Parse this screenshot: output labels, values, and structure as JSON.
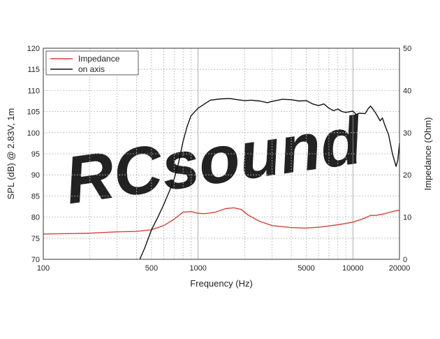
{
  "chart_data": {
    "type": "line",
    "x_scale": "log",
    "xlabel": "Frequency (Hz)",
    "ylabel_left": "SPL (dB) @ 2.83V, 1m",
    "ylabel_right": "Impedance (Ohm)",
    "xlim": [
      100,
      20000
    ],
    "ylim_left": [
      70,
      120
    ],
    "ylim_right": [
      0,
      50
    ],
    "x_ticks": [
      100,
      500,
      1000,
      5000,
      10000,
      20000
    ],
    "x_tick_labels": [
      "100",
      "500",
      "1000",
      "5000",
      "10000",
      "20000"
    ],
    "y_left_ticks": [
      70,
      75,
      80,
      85,
      90,
      95,
      100,
      105,
      110,
      115,
      120
    ],
    "y_right_ticks": [
      0,
      10,
      20,
      30,
      40,
      50
    ],
    "grid": true,
    "legend_position": "top-left",
    "watermark": "RCsound",
    "series": [
      {
        "name": "Impedance",
        "color": "#d9423a",
        "axis": "right",
        "points": [
          [
            100,
            6
          ],
          [
            150,
            6.1
          ],
          [
            200,
            6.2
          ],
          [
            300,
            6.5
          ],
          [
            400,
            6.6
          ],
          [
            500,
            7
          ],
          [
            600,
            8
          ],
          [
            700,
            9.5
          ],
          [
            800,
            11.2
          ],
          [
            900,
            11.3
          ],
          [
            1000,
            10.9
          ],
          [
            1100,
            10.8
          ],
          [
            1300,
            11.2
          ],
          [
            1500,
            12
          ],
          [
            1700,
            12.2
          ],
          [
            1900,
            11.8
          ],
          [
            2100,
            10.5
          ],
          [
            2500,
            9
          ],
          [
            3000,
            8
          ],
          [
            4000,
            7.5
          ],
          [
            5000,
            7.4
          ],
          [
            6000,
            7.6
          ],
          [
            7000,
            7.9
          ],
          [
            8000,
            8.2
          ],
          [
            9000,
            8.5
          ],
          [
            10000,
            8.8
          ],
          [
            11000,
            9.3
          ],
          [
            12000,
            9.8
          ],
          [
            13000,
            10.4
          ],
          [
            14000,
            10.4
          ],
          [
            15000,
            10.6
          ],
          [
            16000,
            10.8
          ],
          [
            17000,
            11.1
          ],
          [
            18000,
            11.3
          ],
          [
            19000,
            11.5
          ],
          [
            20000,
            11.6
          ]
        ]
      },
      {
        "name": "on axis",
        "color": "#111111",
        "axis": "left",
        "points": [
          [
            420,
            70
          ],
          [
            450,
            72.5
          ],
          [
            500,
            77
          ],
          [
            550,
            80
          ],
          [
            600,
            83
          ],
          [
            650,
            86
          ],
          [
            700,
            89
          ],
          [
            750,
            93
          ],
          [
            800,
            98
          ],
          [
            850,
            101.5
          ],
          [
            900,
            104
          ],
          [
            1000,
            105.8
          ],
          [
            1100,
            106.8
          ],
          [
            1200,
            107.7
          ],
          [
            1400,
            108
          ],
          [
            1600,
            108.1
          ],
          [
            1800,
            107.8
          ],
          [
            2000,
            107.6
          ],
          [
            2200,
            107.7
          ],
          [
            2500,
            107.5
          ],
          [
            2800,
            107.1
          ],
          [
            3000,
            107.4
          ],
          [
            3500,
            107.9
          ],
          [
            4000,
            107.8
          ],
          [
            4500,
            107.5
          ],
          [
            5000,
            107.6
          ],
          [
            5500,
            106.8
          ],
          [
            6000,
            106.4
          ],
          [
            6500,
            106.8
          ],
          [
            7000,
            105.8
          ],
          [
            7500,
            105.2
          ],
          [
            8000,
            105.6
          ],
          [
            8500,
            105
          ],
          [
            9000,
            104.8
          ],
          [
            10000,
            105.1
          ],
          [
            10500,
            104.3
          ],
          [
            11000,
            104.6
          ],
          [
            12000,
            104.5
          ],
          [
            12500,
            105.6
          ],
          [
            13000,
            106.3
          ],
          [
            13500,
            105.5
          ],
          [
            14000,
            104.7
          ],
          [
            15000,
            102.8
          ],
          [
            15500,
            103.5
          ],
          [
            16000,
            102
          ],
          [
            17000,
            99.5
          ],
          [
            18000,
            95
          ],
          [
            19000,
            92
          ],
          [
            19500,
            93.5
          ],
          [
            20000,
            97.5
          ]
        ]
      }
    ]
  }
}
